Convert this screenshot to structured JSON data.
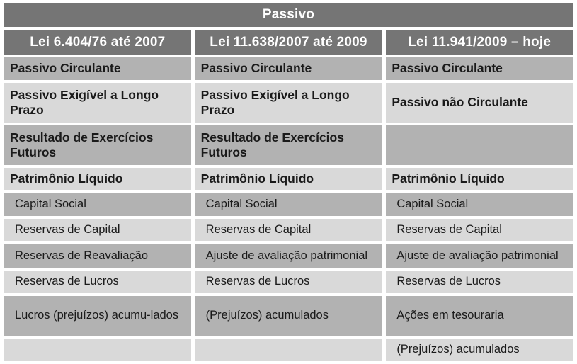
{
  "table": {
    "title": "Passivo",
    "columns": [
      {
        "header": "Lei 6.404/76 até 2007"
      },
      {
        "header": "Lei 11.638/2007 até 2009"
      },
      {
        "header": "Lei 11.941/2009 – hoje"
      }
    ],
    "rows": [
      {
        "style": "section",
        "cells": [
          "Passivo Circulante",
          "Passivo Circulante",
          "Passivo Circulante"
        ]
      },
      {
        "style": "section",
        "cells": [
          "Passivo Exigível a Longo Prazo",
          "Passivo Exigível a Longo Prazo",
          "Passivo não Circulante"
        ]
      },
      {
        "style": "section",
        "cells": [
          "Resultado de Exercícios Futuros",
          "Resultado de Exercícios Futuros",
          ""
        ]
      },
      {
        "style": "section",
        "cells": [
          "Patrimônio Líquido",
          "Patrimônio Líquido",
          "Patrimônio Líquido"
        ]
      },
      {
        "style": "item",
        "cells": [
          "Capital Social",
          "Capital Social",
          "Capital Social"
        ]
      },
      {
        "style": "item",
        "cells": [
          "Reservas de Capital",
          "Reservas de Capital",
          "Reservas de Capital"
        ]
      },
      {
        "style": "item",
        "cells": [
          "Reservas de Reavaliação",
          "Ajuste de avaliação patrimonial",
          "Ajuste de avaliação patrimonial"
        ]
      },
      {
        "style": "item",
        "cells": [
          "Reservas de Lucros",
          "Reservas de Lucros",
          "Reservas de Lucros"
        ]
      },
      {
        "style": "item",
        "cells": [
          "Lucros (prejuízos) acumu-lados",
          "(Prejuízos) acumulados",
          "Ações em tesouraria"
        ]
      },
      {
        "style": "item",
        "cells": [
          "",
          "",
          "(Prejuízos) acumulados"
        ]
      }
    ],
    "colors": {
      "header_bg": "#757575",
      "row_medium": "#b2b2b2",
      "row_light": "#d9d9d9",
      "gutter": "#ffffff",
      "header_text": "#ffffff",
      "body_text": "#1a1a1a"
    }
  }
}
